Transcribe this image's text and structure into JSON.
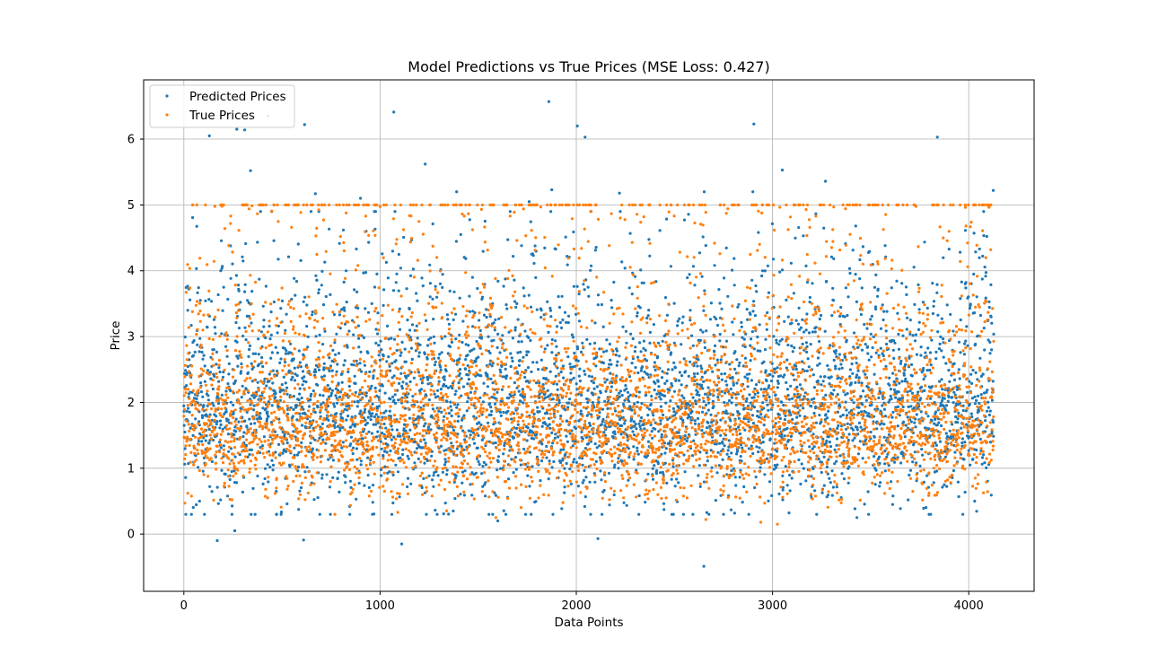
{
  "chart_data": {
    "type": "scatter",
    "title": "Model Predictions vs True Prices (MSE Loss: 0.427)",
    "xlabel": "Data Points",
    "ylabel": "Price",
    "xlim": [
      -205,
      4333
    ],
    "ylim": [
      -0.87,
      6.9
    ],
    "xticks": [
      0,
      1000,
      2000,
      3000,
      4000
    ],
    "yticks": [
      0,
      1,
      2,
      3,
      4,
      5,
      6
    ],
    "grid": true,
    "legend_position": "top-left",
    "n_points": 4128,
    "series": [
      {
        "name": "Predicted Prices",
        "color": "#1f77b4",
        "marker_size": 2,
        "value_range": [
          -0.49,
          6.56
        ],
        "typical_range": [
          0.5,
          3.8
        ],
        "points": [
          [
            5,
            1.55
          ],
          [
            20,
            3.4
          ],
          [
            80,
            0.5
          ],
          [
            130,
            6.05
          ],
          [
            170,
            -0.1
          ],
          [
            260,
            0.05
          ],
          [
            270,
            6.15
          ],
          [
            310,
            6.14
          ],
          [
            340,
            5.52
          ],
          [
            430,
            6.35
          ],
          [
            610,
            -0.09
          ],
          [
            615,
            6.22
          ],
          [
            670,
            5.17
          ],
          [
            900,
            5.1
          ],
          [
            1070,
            6.41
          ],
          [
            1110,
            -0.15
          ],
          [
            1230,
            5.62
          ],
          [
            1390,
            5.2
          ],
          [
            1600,
            0.2
          ],
          [
            1760,
            5.05
          ],
          [
            1860,
            6.57
          ],
          [
            1875,
            5.23
          ],
          [
            2005,
            6.2
          ],
          [
            2045,
            6.03
          ],
          [
            2110,
            -0.07
          ],
          [
            2220,
            5.18
          ],
          [
            2650,
            -0.49
          ],
          [
            2652,
            5.2
          ],
          [
            2900,
            5.2
          ],
          [
            2905,
            6.23
          ],
          [
            3050,
            5.53
          ],
          [
            3270,
            5.36
          ],
          [
            3430,
            0.25
          ],
          [
            3840,
            6.03
          ],
          [
            4125,
            5.22
          ]
        ]
      },
      {
        "name": "True Prices",
        "color": "#ff7f0e",
        "marker_size": 2,
        "value_range": [
          0.15,
          5.0
        ],
        "typical_range": [
          0.5,
          3.5
        ],
        "capped_value": 5.0,
        "points": [
          [
            5,
            0.47
          ],
          [
            770,
            0.3
          ],
          [
            1090,
            0.33
          ],
          [
            2660,
            0.22
          ],
          [
            2940,
            0.18
          ],
          [
            3025,
            0.15
          ]
        ]
      }
    ]
  }
}
